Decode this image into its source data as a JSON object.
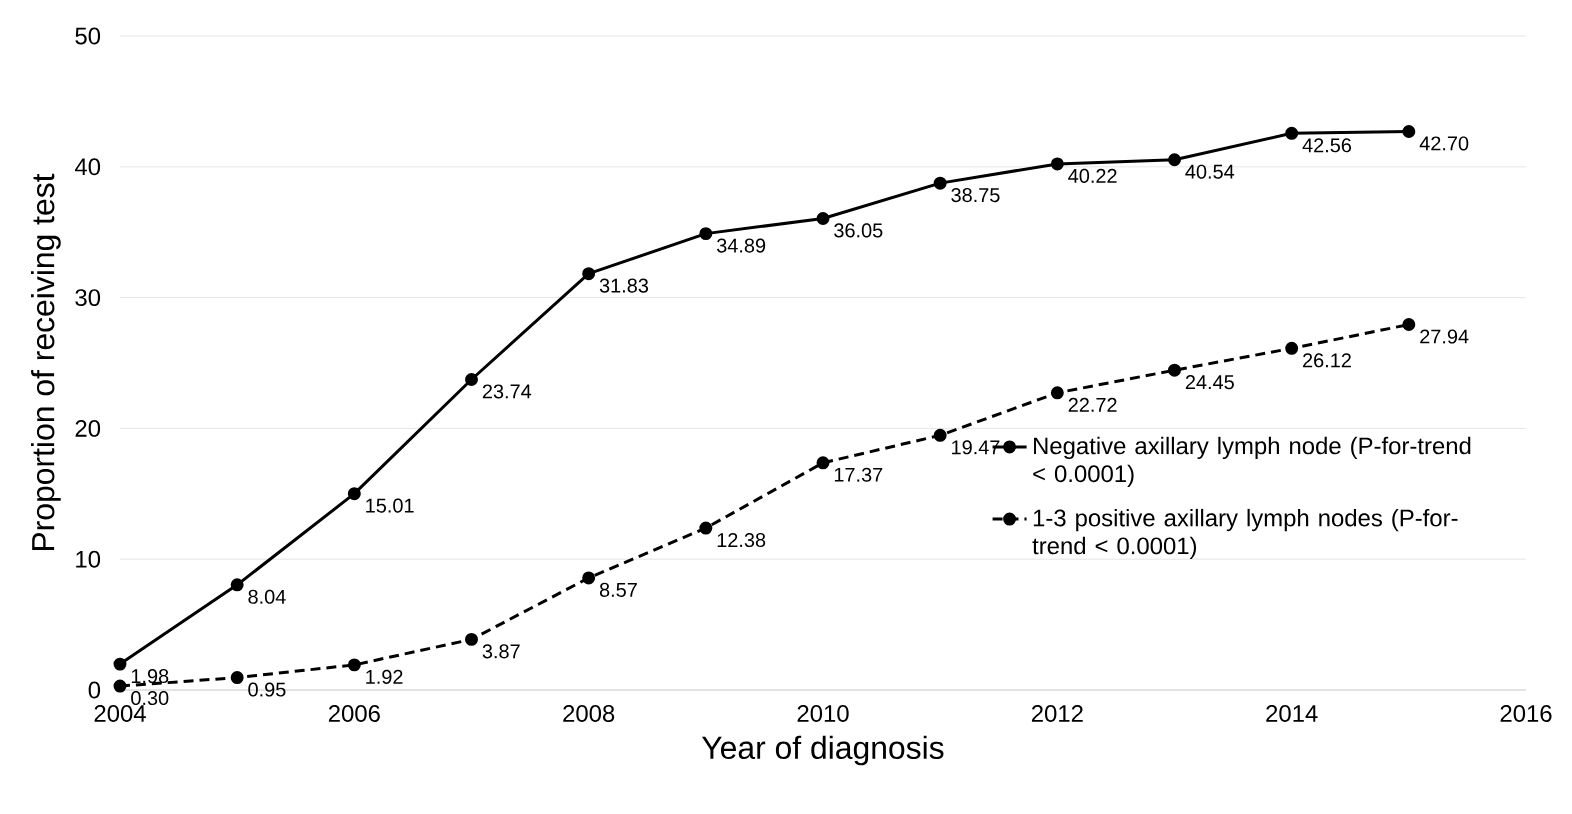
{
  "chart_data": {
    "type": "line",
    "xlabel": "Year of diagnosis",
    "ylabel": "Proportion of receiving test",
    "x": [
      2004,
      2005,
      2006,
      2007,
      2008,
      2009,
      2010,
      2011,
      2012,
      2013,
      2014,
      2015
    ],
    "series": [
      {
        "name": "Negative axillary lymph node (P-for-trend < 0.0001)",
        "color": "#000000",
        "line_style": "solid",
        "values": [
          1.98,
          8.04,
          15.01,
          23.74,
          31.83,
          34.89,
          36.05,
          38.75,
          40.22,
          40.54,
          42.56,
          42.7
        ],
        "value_labels": [
          "1.98",
          "8.04",
          "15.01",
          "23.74",
          "31.83",
          "34.89",
          "36.05",
          "38.75",
          "40.22",
          "40.54",
          "42.56",
          "42.70"
        ]
      },
      {
        "name": "1-3 positive axillary lymph nodes (P-for-trend < 0.0001)",
        "color": "#000000",
        "line_style": "dashed",
        "values": [
          0.3,
          0.95,
          1.92,
          3.87,
          8.57,
          12.38,
          17.37,
          19.47,
          22.72,
          24.45,
          26.12,
          27.94
        ],
        "value_labels": [
          "0.30",
          "0.95",
          "1.92",
          "3.87",
          "8.57",
          "12.38",
          "17.37",
          "19.47",
          "22.72",
          "24.45",
          "26.12",
          "27.94"
        ]
      }
    ],
    "xlim": [
      2004,
      2016
    ],
    "xticks": [
      2004,
      2006,
      2008,
      2010,
      2012,
      2014,
      2016
    ],
    "ylim": [
      0,
      50
    ],
    "yticks": [
      0,
      10,
      20,
      30,
      40,
      50
    ],
    "grid": "y",
    "legend": "right",
    "marker": "circle"
  }
}
